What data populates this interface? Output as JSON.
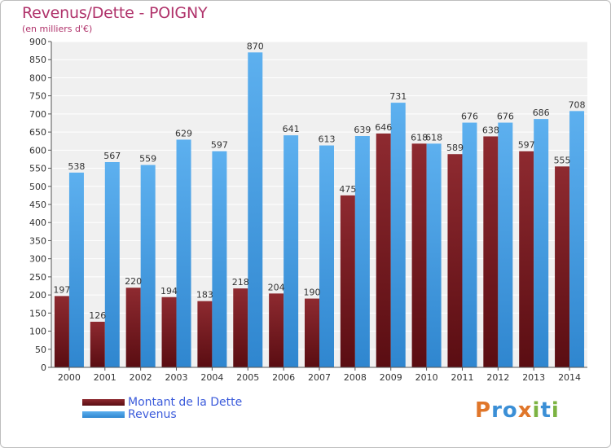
{
  "title": "Revenus/Dette - POIGNY",
  "subtitle": "(en milliers d'€)",
  "colors": {
    "dette": "#7b1f24",
    "revenus": "#4aa3e6",
    "title": "#b0336b",
    "legend_text": "#3b5bdb"
  },
  "legend": {
    "dette_label": "Montant de la Dette",
    "revenus_label": "Revenus"
  },
  "logo": {
    "letters": [
      "P",
      "r",
      "o",
      "x",
      "i",
      "t",
      "i"
    ],
    "colors": [
      "#e0762a",
      "#3b8fd6",
      "#3b8fd6",
      "#e0762a",
      "#7cb342",
      "#3b8fd6",
      "#7cb342"
    ]
  },
  "chart_data": {
    "type": "bar",
    "title": "Revenus/Dette - POIGNY",
    "ylabel": "(en milliers d'€)",
    "xlabel": "",
    "ylim": [
      0,
      900
    ],
    "yticks": [
      0,
      50,
      100,
      150,
      200,
      250,
      300,
      350,
      400,
      450,
      500,
      550,
      600,
      650,
      700,
      750,
      800,
      850,
      900
    ],
    "grid": true,
    "categories": [
      "2000",
      "2001",
      "2002",
      "2003",
      "2004",
      "2005",
      "2006",
      "2007",
      "2008",
      "2009",
      "2010",
      "2011",
      "2012",
      "2013",
      "2014"
    ],
    "series": [
      {
        "name": "Montant de la Dette",
        "values": [
          197,
          126,
          220,
          194,
          183,
          218,
          204,
          190,
          475,
          646,
          618,
          589,
          638,
          597,
          555
        ]
      },
      {
        "name": "Revenus",
        "values": [
          538,
          567,
          559,
          629,
          597,
          870,
          641,
          613,
          639,
          731,
          618,
          676,
          676,
          686,
          708
        ]
      }
    ]
  }
}
